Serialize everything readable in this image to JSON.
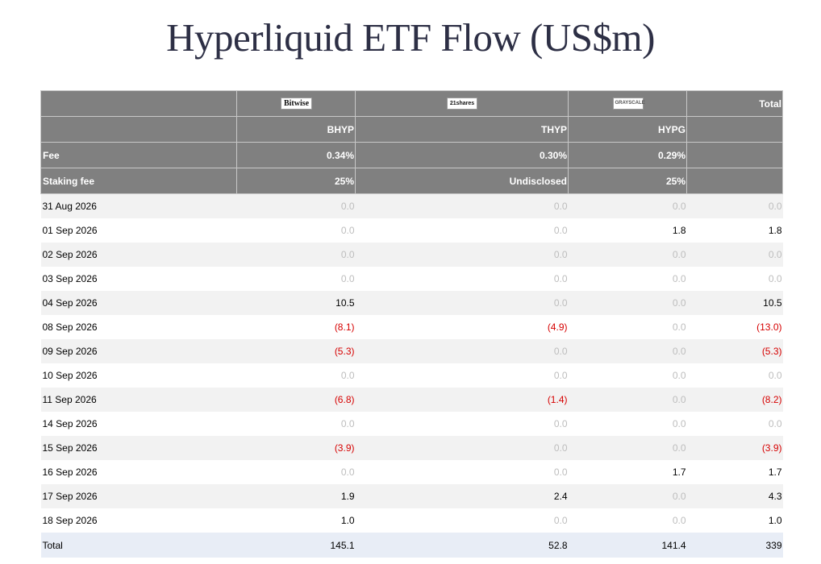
{
  "title": "Hyperliquid ETF Flow (US$m)",
  "issuers": [
    "Bitwise",
    "21shares",
    "GRAYSCALE"
  ],
  "total_header": "Total",
  "tickers": [
    "BHYP",
    "THYP",
    "HYPG"
  ],
  "fee": {
    "label": "Fee",
    "values": [
      "0.34%",
      "0.30%",
      "0.29%"
    ]
  },
  "staking_fee": {
    "label": "Staking fee",
    "values": [
      "25%",
      "Undisclosed",
      "25%"
    ]
  },
  "rows": [
    {
      "date": "31 Aug 2026",
      "bhyp": "0.0",
      "thyp": "0.0",
      "hypg": "0.0",
      "total": "0.0"
    },
    {
      "date": "01 Sep 2026",
      "bhyp": "0.0",
      "thyp": "0.0",
      "hypg": "1.8",
      "total": "1.8"
    },
    {
      "date": "02 Sep 2026",
      "bhyp": "0.0",
      "thyp": "0.0",
      "hypg": "0.0",
      "total": "0.0"
    },
    {
      "date": "03 Sep 2026",
      "bhyp": "0.0",
      "thyp": "0.0",
      "hypg": "0.0",
      "total": "0.0"
    },
    {
      "date": "04 Sep 2026",
      "bhyp": "10.5",
      "thyp": "0.0",
      "hypg": "0.0",
      "total": "10.5"
    },
    {
      "date": "08 Sep 2026",
      "bhyp": "(8.1)",
      "thyp": "(4.9)",
      "hypg": "0.0",
      "total": "(13.0)"
    },
    {
      "date": "09 Sep 2026",
      "bhyp": "(5.3)",
      "thyp": "0.0",
      "hypg": "0.0",
      "total": "(5.3)"
    },
    {
      "date": "10 Sep 2026",
      "bhyp": "0.0",
      "thyp": "0.0",
      "hypg": "0.0",
      "total": "0.0"
    },
    {
      "date": "11 Sep 2026",
      "bhyp": "(6.8)",
      "thyp": "(1.4)",
      "hypg": "0.0",
      "total": "(8.2)"
    },
    {
      "date": "14 Sep 2026",
      "bhyp": "0.0",
      "thyp": "0.0",
      "hypg": "0.0",
      "total": "0.0"
    },
    {
      "date": "15 Sep 2026",
      "bhyp": "(3.9)",
      "thyp": "0.0",
      "hypg": "0.0",
      "total": "(3.9)"
    },
    {
      "date": "16 Sep 2026",
      "bhyp": "0.0",
      "thyp": "0.0",
      "hypg": "1.7",
      "total": "1.7"
    },
    {
      "date": "17 Sep 2026",
      "bhyp": "1.9",
      "thyp": "2.4",
      "hypg": "0.0",
      "total": "4.3"
    },
    {
      "date": "18 Sep 2026",
      "bhyp": "1.0",
      "thyp": "0.0",
      "hypg": "0.0",
      "total": "1.0"
    }
  ],
  "total_row": {
    "label": "Total",
    "bhyp": "145.1",
    "thyp": "52.8",
    "hypg": "141.4",
    "total": "339"
  },
  "colors": {
    "header_bg": "#808080",
    "title": "#2d2f45",
    "negative": "#d60000",
    "zero": "#bdbdbd",
    "stripe": "#f2f2f2",
    "total_bg": "#e8edf6"
  }
}
